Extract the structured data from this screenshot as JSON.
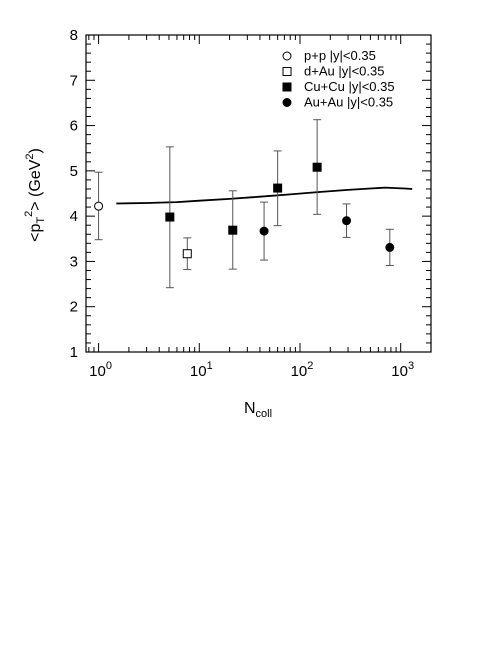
{
  "chart_data": {
    "type": "scatter",
    "xscale": "log",
    "xlim": [
      0.75,
      2000
    ],
    "ylim": [
      1,
      8
    ],
    "xlabel": "N",
    "xlabel_sub": "coll",
    "ylabel_parts": [
      "<p",
      "T",
      "2",
      "> (GeV",
      "2",
      ")"
    ],
    "yticks": [
      1,
      2,
      3,
      4,
      5,
      6,
      7,
      8
    ],
    "xticks": [
      {
        "value": 1,
        "base": "10",
        "exp": "0"
      },
      {
        "value": 10,
        "base": "10",
        "exp": "1"
      },
      {
        "value": 100,
        "base": "10",
        "exp": "2"
      },
      {
        "value": 1000,
        "base": "10",
        "exp": "3"
      }
    ],
    "grid": false,
    "legend_position": "top-right",
    "series": [
      {
        "name": "p+p |y|<0.35",
        "marker": "open-circle",
        "points": [
          {
            "x": 1.0,
            "y": 4.22,
            "err_low": 3.48,
            "err_high": 4.97
          }
        ]
      },
      {
        "name": "d+Au |y|<0.35",
        "marker": "open-square",
        "points": [
          {
            "x": 7.6,
            "y": 3.17,
            "err_low": 2.82,
            "err_high": 3.52
          }
        ]
      },
      {
        "name": "Cu+Cu |y|<0.35",
        "marker": "filled-square",
        "points": [
          {
            "x": 5.1,
            "y": 3.98,
            "err_low": 2.42,
            "err_high": 5.53
          },
          {
            "x": 21.5,
            "y": 3.69,
            "err_low": 2.83,
            "err_high": 4.56
          },
          {
            "x": 60,
            "y": 4.62,
            "err_low": 3.79,
            "err_high": 5.44
          },
          {
            "x": 148,
            "y": 5.08,
            "err_low": 4.04,
            "err_high": 6.13
          }
        ]
      },
      {
        "name": "Au+Au |y|<0.35",
        "marker": "filled-circle",
        "points": [
          {
            "x": 44,
            "y": 3.67,
            "err_low": 3.03,
            "err_high": 4.31
          },
          {
            "x": 290,
            "y": 3.9,
            "err_low": 3.53,
            "err_high": 4.27
          },
          {
            "x": 780,
            "y": 3.31,
            "err_low": 2.91,
            "err_high": 3.71
          }
        ]
      }
    ],
    "curve": {
      "points": [
        [
          1.5,
          4.28
        ],
        [
          3,
          4.29
        ],
        [
          6,
          4.31
        ],
        [
          10,
          4.34
        ],
        [
          20,
          4.38
        ],
        [
          40,
          4.43
        ],
        [
          80,
          4.48
        ],
        [
          150,
          4.53
        ],
        [
          300,
          4.58
        ],
        [
          500,
          4.61
        ],
        [
          700,
          4.63
        ],
        [
          900,
          4.62
        ],
        [
          1100,
          4.61
        ],
        [
          1300,
          4.6
        ]
      ]
    }
  }
}
